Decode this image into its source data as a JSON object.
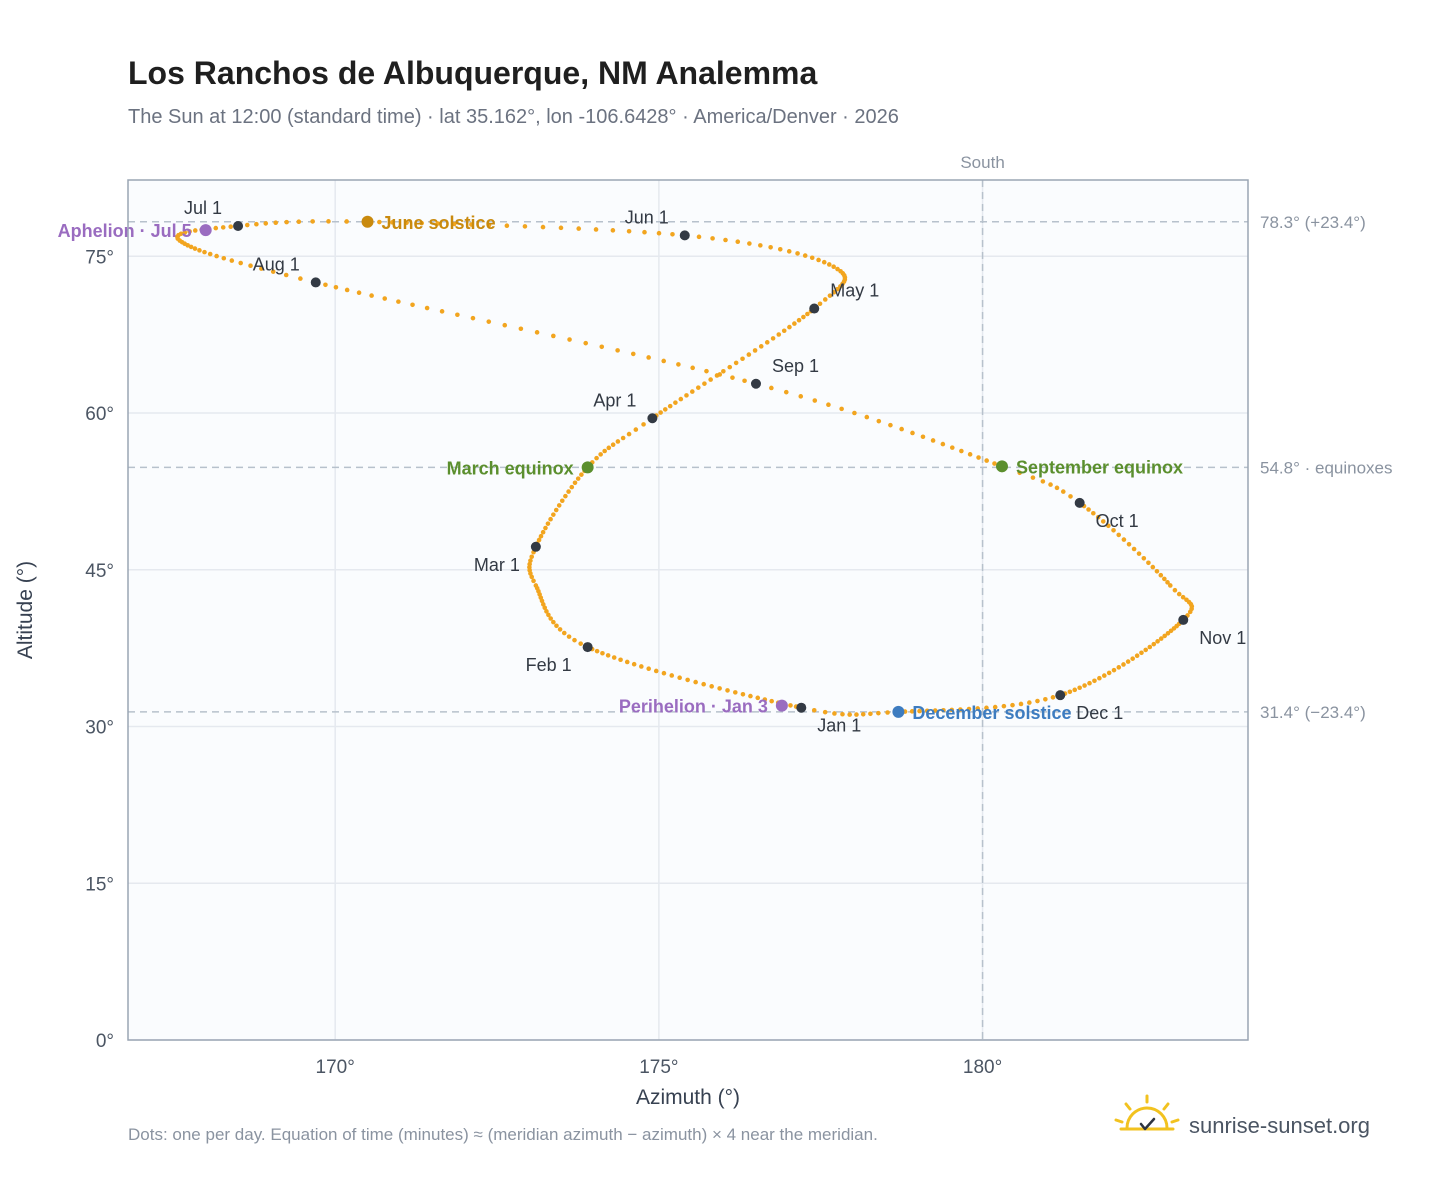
{
  "title": "Los Ranchos de Albuquerque, NM Analemma",
  "subtitle": "The Sun at 12:00 (standard time) · lat 35.162°, lon -106.6428° · America/Denver · 2026",
  "footnote": "Dots: one per day. Equation of time (minutes) ≈ (meridian azimuth − azimuth) × 4 near the meridian.",
  "brand": {
    "text": "sunrise-sunset.org",
    "icon": "sun-logo-icon"
  },
  "colors": {
    "path": "#f2a51f",
    "month": "#333a44",
    "june": "#c98a0e",
    "equinox": "#5b8f2e",
    "december": "#3d7cc0",
    "apsis": "#9a6cc0",
    "grid": "#e5e9ef",
    "ref": "#b7c1cc",
    "frame": "#9aa5b4",
    "plot_bg": "#fafcfe"
  },
  "chart_data": {
    "type": "scatter",
    "xlabel": "Azimuth (°)",
    "ylabel": "Altitude (°)",
    "xlim": [
      166.8,
      184.1
    ],
    "ylim": [
      0,
      82.3
    ],
    "xticks": [
      170,
      175,
      180
    ],
    "xtick_labels": [
      "170°",
      "175°",
      "180°"
    ],
    "yticks": [
      0,
      15,
      30,
      45,
      60,
      75
    ],
    "ytick_labels": [
      "0°",
      "15°",
      "30°",
      "45°",
      "60°",
      "75°"
    ],
    "grid": true,
    "meridian": {
      "azimuth": 180,
      "label": "South"
    },
    "reference_lines": [
      {
        "altitude": 78.3,
        "label": "78.3° (+23.4°)"
      },
      {
        "altitude": 54.8,
        "label": "54.8° · equinoxes"
      },
      {
        "altitude": 31.4,
        "label": "31.4° (−23.4°)"
      }
    ],
    "path_keypoints": [
      {
        "doy": 1,
        "az": 177.2,
        "alt": 31.8
      },
      {
        "doy": 32,
        "az": 173.9,
        "alt": 37.6
      },
      {
        "doy": 50,
        "az": 173.1,
        "alt": 43.5
      },
      {
        "doy": 60,
        "az": 173.1,
        "alt": 47.2
      },
      {
        "doy": 79,
        "az": 173.9,
        "alt": 54.8
      },
      {
        "doy": 91,
        "az": 174.9,
        "alt": 59.5
      },
      {
        "doy": 121,
        "az": 177.4,
        "alt": 70.0
      },
      {
        "doy": 136,
        "az": 177.7,
        "alt": 74.0
      },
      {
        "doy": 152,
        "az": 175.4,
        "alt": 77.0
      },
      {
        "doy": 172,
        "az": 170.5,
        "alt": 78.3
      },
      {
        "doy": 182,
        "az": 168.5,
        "alt": 77.9
      },
      {
        "doy": 195,
        "az": 167.6,
        "alt": 76.5
      },
      {
        "doy": 213,
        "az": 169.7,
        "alt": 72.5
      },
      {
        "doy": 244,
        "az": 176.5,
        "alt": 62.8
      },
      {
        "doy": 266,
        "az": 180.3,
        "alt": 54.9
      },
      {
        "doy": 274,
        "az": 181.5,
        "alt": 51.4
      },
      {
        "doy": 294,
        "az": 182.9,
        "alt": 43.5
      },
      {
        "doy": 305,
        "az": 183.1,
        "alt": 40.2
      },
      {
        "doy": 335,
        "az": 181.2,
        "alt": 33.0
      },
      {
        "doy": 355,
        "az": 178.7,
        "alt": 31.4
      },
      {
        "doy": 366,
        "az": 177.2,
        "alt": 31.8
      }
    ],
    "month_markers": [
      {
        "label": "Jan 1",
        "az": 177.2,
        "alt": 31.8,
        "pos": "below-right"
      },
      {
        "label": "Feb 1",
        "az": 173.9,
        "alt": 37.6,
        "pos": "below-left"
      },
      {
        "label": "Mar 1",
        "az": 173.1,
        "alt": 47.2,
        "pos": "below-left"
      },
      {
        "label": "Apr 1",
        "az": 174.9,
        "alt": 59.5,
        "pos": "above-left"
      },
      {
        "label": "May 1",
        "az": 177.4,
        "alt": 70.0,
        "pos": "above-right"
      },
      {
        "label": "Jun 1",
        "az": 175.4,
        "alt": 77.0,
        "pos": "above-left"
      },
      {
        "label": "Jul 1",
        "az": 168.5,
        "alt": 77.9,
        "pos": "above-left"
      },
      {
        "label": "Aug 1",
        "az": 169.7,
        "alt": 72.5,
        "pos": "above-left"
      },
      {
        "label": "Sep 1",
        "az": 176.5,
        "alt": 62.8,
        "pos": "above-right"
      },
      {
        "label": "Oct 1",
        "az": 181.5,
        "alt": 51.4,
        "pos": "below-right"
      },
      {
        "label": "Nov 1",
        "az": 183.1,
        "alt": 40.2,
        "pos": "below-right"
      },
      {
        "label": "Dec 1",
        "az": 181.2,
        "alt": 33.0,
        "pos": "below-right"
      }
    ],
    "events": [
      {
        "label": "June solstice",
        "az": 170.5,
        "alt": 78.3,
        "color": "june",
        "pos": "right"
      },
      {
        "label": "March equinox",
        "az": 173.9,
        "alt": 54.8,
        "color": "equinox",
        "pos": "left"
      },
      {
        "label": "September equinox",
        "az": 180.3,
        "alt": 54.9,
        "color": "equinox",
        "pos": "right"
      },
      {
        "label": "December solstice",
        "az": 178.7,
        "alt": 31.4,
        "color": "december",
        "pos": "right"
      },
      {
        "label": "Aphelion · Jul 5",
        "az": 168.0,
        "alt": 77.5,
        "color": "apsis",
        "pos": "left"
      },
      {
        "label": "Perihelion · Jan 3",
        "az": 176.9,
        "alt": 32.0,
        "color": "apsis",
        "pos": "left"
      }
    ]
  }
}
